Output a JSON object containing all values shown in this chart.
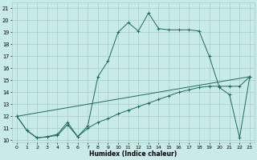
{
  "xlabel": "Humidex (Indice chaleur)",
  "bg_color": "#c8eae8",
  "grid_color": "#a8ccc8",
  "line_color": "#1a6b5a",
  "xlim": [
    -0.5,
    23.5
  ],
  "ylim": [
    9.8,
    21.5
  ],
  "yticks": [
    10,
    11,
    12,
    13,
    14,
    15,
    16,
    17,
    18,
    19,
    20,
    21
  ],
  "xticks": [
    0,
    1,
    2,
    3,
    4,
    5,
    6,
    7,
    8,
    9,
    10,
    11,
    12,
    13,
    14,
    15,
    16,
    17,
    18,
    19,
    20,
    21,
    22,
    23
  ],
  "line1_x": [
    0,
    1,
    2,
    3,
    4,
    5,
    6,
    7,
    8,
    9,
    10,
    11,
    12,
    13,
    14,
    15,
    16,
    17,
    18,
    19,
    20,
    21,
    22,
    23
  ],
  "line1_y": [
    12.0,
    10.8,
    10.2,
    10.3,
    10.5,
    11.5,
    10.3,
    11.2,
    15.3,
    16.6,
    19.0,
    19.8,
    19.1,
    20.6,
    19.3,
    19.2,
    19.2,
    19.2,
    19.1,
    17.0,
    14.4,
    13.8,
    10.2,
    15.3
  ],
  "line2_x": [
    0,
    1,
    2,
    3,
    4,
    5,
    6,
    7,
    8,
    9,
    10,
    11,
    12,
    13,
    14,
    15,
    16,
    17,
    18,
    19,
    20,
    21,
    22,
    23
  ],
  "line2_y": [
    12.0,
    10.8,
    10.2,
    10.3,
    10.4,
    11.3,
    10.3,
    11.0,
    11.5,
    11.8,
    12.2,
    12.5,
    12.8,
    13.1,
    13.4,
    13.7,
    14.0,
    14.2,
    14.4,
    14.5,
    14.5,
    14.5,
    14.5,
    15.3
  ],
  "line3_x": [
    0,
    23
  ],
  "line3_y": [
    12.0,
    15.3
  ]
}
